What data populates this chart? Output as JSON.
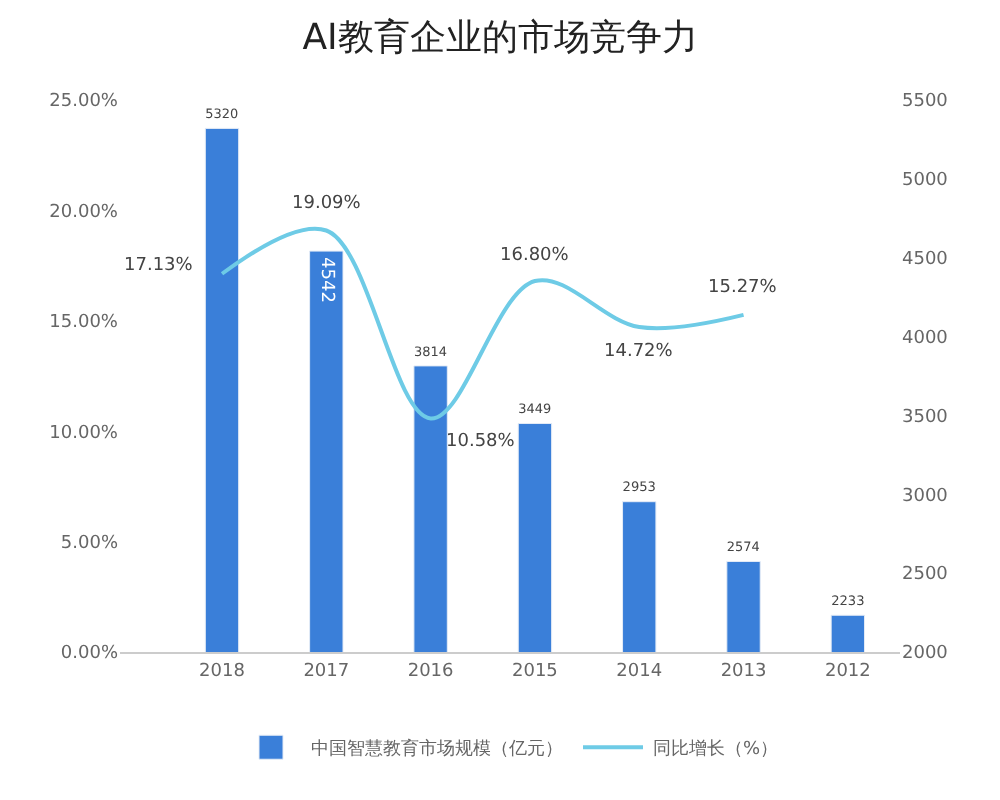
{
  "chart_data": {
    "type": "bar",
    "title": "AI教育企业的市场竞争力",
    "categories": [
      "2018",
      "2017",
      "2016",
      "2015",
      "2014",
      "2013",
      "2012"
    ],
    "series": [
      {
        "name": "中国智慧教育市场规模（亿元）",
        "axis": "y2",
        "color": "#3a7fd9",
        "values": [
          5320,
          4542,
          3814,
          3449,
          2953,
          2574,
          2233
        ],
        "value_labels": [
          "5320",
          "4542",
          "3814",
          "3449",
          "2953",
          "2574",
          "2233"
        ]
      },
      {
        "name": "同比增长（%）",
        "type": "line",
        "axis": "y",
        "color": "#6ecbe6",
        "values": [
          17.13,
          19.09,
          10.58,
          16.8,
          14.72,
          15.27,
          null
        ],
        "value_labels": [
          "17.13%",
          "19.09%",
          "10.58%",
          "16.80%",
          "14.72%",
          "15.27%",
          null
        ]
      }
    ],
    "ylim": [
      0,
      25
    ],
    "yticks": [
      {
        "value": 0,
        "label": "0.00%"
      },
      {
        "value": 5,
        "label": "5.00%"
      },
      {
        "value": 10,
        "label": "10.00%"
      },
      {
        "value": 15,
        "label": "15.00%"
      },
      {
        "value": 20,
        "label": "20.00%"
      },
      {
        "value": 25,
        "label": "25.00%"
      }
    ],
    "y2lim": [
      2000,
      5500
    ],
    "y2ticks": [
      2000,
      2500,
      3000,
      3500,
      4000,
      4500,
      5000,
      5500
    ],
    "legend": "bottom",
    "marker": "none",
    "line_style": "solid"
  }
}
